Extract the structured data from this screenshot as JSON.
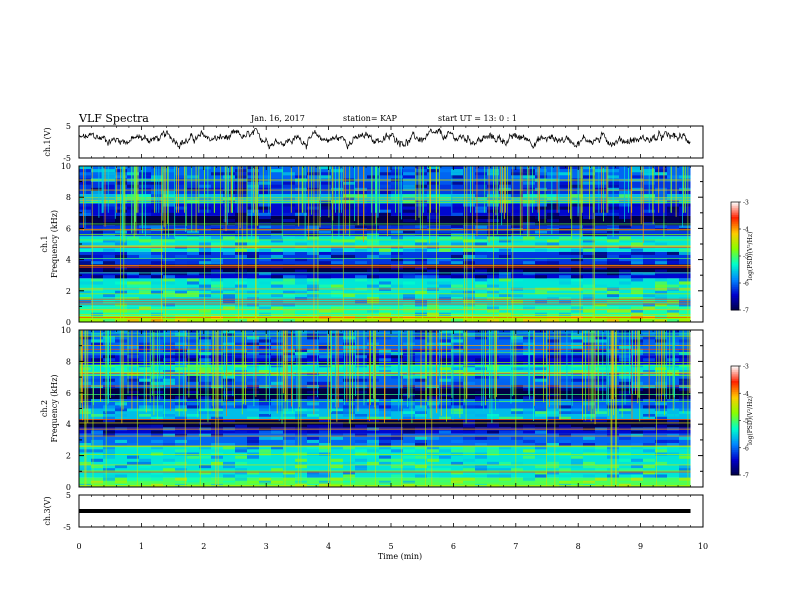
{
  "header": {
    "title": "VLF Spectra",
    "date": "Jan. 16, 2017",
    "station": "station= KAP",
    "start": "start  UT =   13: 0  : 1"
  },
  "chart_data": [
    {
      "type": "line",
      "panel": "ch1-waveform",
      "ylabel": "ch.1(V)",
      "ylim": [
        -5,
        5
      ],
      "yticks": [
        "5",
        "-5"
      ],
      "x_range_min": [
        0,
        9.8
      ],
      "color": "#000000",
      "description": "noisy voltage trace oscillating around ~1 V, mostly between -1 and 3 V"
    },
    {
      "type": "heatmap",
      "panel": "ch1-spectrogram",
      "ylabel_lines": [
        "ch.1",
        "Frequency (kHz)"
      ],
      "yticks": [
        "0",
        "2",
        "4",
        "6",
        "8",
        "10"
      ],
      "ylim_khz": [
        0,
        10
      ],
      "x_range_min": [
        0,
        9.8
      ],
      "colorbar": {
        "label": "log(PSD)(V²/Hz)",
        "ticks": [
          "-3",
          "-4",
          "-5",
          "-6",
          "-7"
        ],
        "range": [
          -7,
          -3
        ],
        "colors": [
          "#000044",
          "#0000cc",
          "#0088ff",
          "#00ffcc",
          "#88ff00",
          "#ffcc00",
          "#ff2200",
          "#ffffff"
        ]
      },
      "bands": [
        {
          "f0": 0.0,
          "f1": 0.4,
          "level": -4.6
        },
        {
          "f0": 0.4,
          "f1": 1.0,
          "level": -5.2
        },
        {
          "f0": 1.0,
          "f1": 2.8,
          "level": -5.4
        },
        {
          "f0": 2.8,
          "f1": 3.2,
          "level": -6.4
        },
        {
          "f0": 3.2,
          "f1": 3.7,
          "level": -7.0
        },
        {
          "f0": 3.7,
          "f1": 4.5,
          "level": -6.2
        },
        {
          "f0": 4.5,
          "f1": 5.5,
          "level": -5.4
        },
        {
          "f0": 5.5,
          "f1": 6.2,
          "level": -6.2
        },
        {
          "f0": 6.2,
          "f1": 6.8,
          "level": -7.0
        },
        {
          "f0": 6.8,
          "f1": 7.6,
          "level": -6.4
        },
        {
          "f0": 7.6,
          "f1": 8.2,
          "level": -5.6
        },
        {
          "f0": 8.2,
          "f1": 9.0,
          "level": -6.2
        },
        {
          "f0": 9.0,
          "f1": 10.0,
          "level": -6.0
        }
      ]
    },
    {
      "type": "heatmap",
      "panel": "ch2-spectrogram",
      "ylabel_lines": [
        "ch.2",
        "Frequency (kHz)"
      ],
      "yticks": [
        "0",
        "2",
        "4",
        "6",
        "8",
        "10"
      ],
      "ylim_khz": [
        0,
        10
      ],
      "x_range_min": [
        0,
        9.8
      ],
      "colorbar": {
        "label": "log(PSD)(V²/Hz)",
        "ticks": [
          "-3",
          "-4",
          "-5",
          "-6",
          "-7"
        ],
        "range": [
          -7,
          -3
        ],
        "colors": [
          "#000044",
          "#0000cc",
          "#0088ff",
          "#00ffcc",
          "#88ff00",
          "#ffcc00",
          "#ff2200",
          "#ffffff"
        ]
      },
      "bands": [
        {
          "f0": 0.0,
          "f1": 0.6,
          "level": -5.0
        },
        {
          "f0": 0.6,
          "f1": 2.6,
          "level": -5.4
        },
        {
          "f0": 2.6,
          "f1": 3.4,
          "level": -6.0
        },
        {
          "f0": 3.4,
          "f1": 3.8,
          "level": -6.4
        },
        {
          "f0": 3.8,
          "f1": 4.3,
          "level": -7.0
        },
        {
          "f0": 4.3,
          "f1": 5.0,
          "level": -5.6
        },
        {
          "f0": 5.0,
          "f1": 5.6,
          "level": -6.0
        },
        {
          "f0": 5.6,
          "f1": 6.3,
          "level": -7.0
        },
        {
          "f0": 6.3,
          "f1": 7.1,
          "level": -6.0
        },
        {
          "f0": 7.1,
          "f1": 7.8,
          "level": -5.4
        },
        {
          "f0": 7.8,
          "f1": 8.4,
          "level": -6.4
        },
        {
          "f0": 8.4,
          "f1": 10.0,
          "level": -6.0
        }
      ]
    },
    {
      "type": "line",
      "panel": "ch3-waveform",
      "ylabel": "ch.3(V)",
      "ylim": [
        -5,
        5
      ],
      "yticks": [
        "5",
        "-5"
      ],
      "x_range_min": [
        0,
        9.8
      ],
      "constant_value": 0,
      "color": "#000000"
    }
  ],
  "x_axis": {
    "label": "Time (min)",
    "ticks": [
      "0",
      "1",
      "2",
      "3",
      "4",
      "5",
      "6",
      "7",
      "8",
      "9",
      "10"
    ],
    "range": [
      0,
      10
    ]
  }
}
